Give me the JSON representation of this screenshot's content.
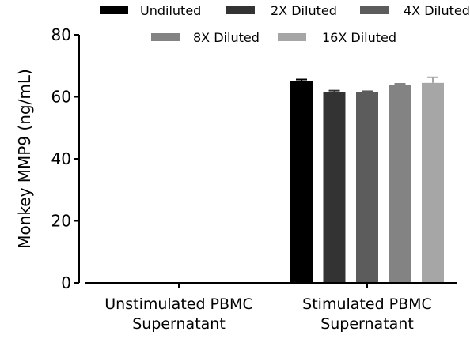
{
  "chart_data": {
    "type": "bar",
    "title": "",
    "xlabel": "",
    "ylabel": "Monkey  MMP9 (ng/mL)",
    "ylim": [
      0,
      80
    ],
    "yticks": [
      0,
      20,
      40,
      60,
      80
    ],
    "grid": false,
    "legend_position": "top",
    "categories": [
      [
        "Unstimulated PBMC",
        "Supernatant"
      ],
      [
        "Stimulated PBMC",
        "Supernatant"
      ]
    ],
    "series": [
      {
        "name": "Undiluted",
        "color": "#000000",
        "values": [
          0,
          65.0
        ],
        "errors": [
          0,
          0.6
        ]
      },
      {
        "name": "2X Diluted",
        "color": "#333333",
        "values": [
          0,
          61.5
        ],
        "errors": [
          0,
          0.5
        ]
      },
      {
        "name": "4X Diluted",
        "color": "#5c5c5c",
        "values": [
          0,
          61.5
        ],
        "errors": [
          0,
          0.3
        ]
      },
      {
        "name": "8X Diluted",
        "color": "#838383",
        "values": [
          0,
          63.8
        ],
        "errors": [
          0,
          0.4
        ]
      },
      {
        "name": "16X Diluted",
        "color": "#a6a6a6",
        "values": [
          0,
          64.5
        ],
        "errors": [
          0,
          1.8
        ]
      }
    ]
  }
}
